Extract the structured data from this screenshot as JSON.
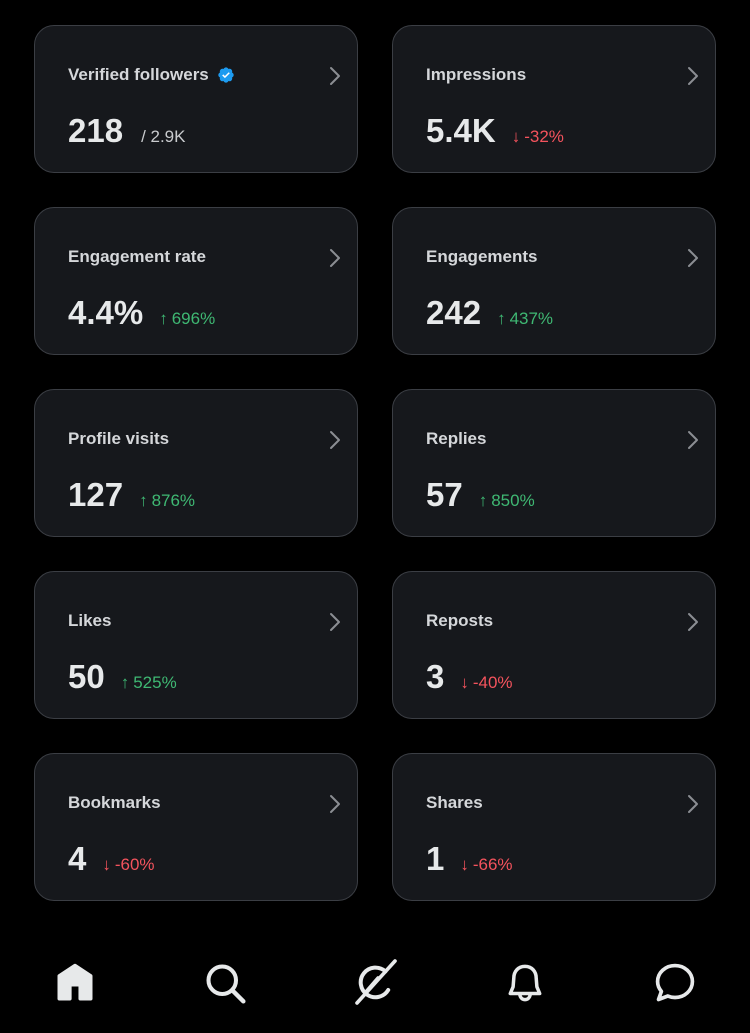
{
  "cards": [
    {
      "name": "verified-followers",
      "label": "Verified followers",
      "value": "218",
      "sub": "/ 2.9K",
      "verified": true,
      "color": "#1d9bf0"
    },
    {
      "name": "impressions",
      "label": "Impressions",
      "value": "5.4K",
      "change": "-32%",
      "direction": "down",
      "arrow": "↓"
    },
    {
      "name": "engagement-rate",
      "label": "Engagement rate",
      "value": "4.4%",
      "change": "696%",
      "direction": "up",
      "arrow": "↑"
    },
    {
      "name": "engagements",
      "label": "Engagements",
      "value": "242",
      "change": "437%",
      "direction": "up",
      "arrow": "↑"
    },
    {
      "name": "profile-visits",
      "label": "Profile visits",
      "value": "127",
      "change": "876%",
      "direction": "up",
      "arrow": "↑"
    },
    {
      "name": "replies",
      "label": "Replies",
      "value": "57",
      "change": "850%",
      "direction": "up",
      "arrow": "↑"
    },
    {
      "name": "likes",
      "label": "Likes",
      "value": "50",
      "change": "525%",
      "direction": "up",
      "arrow": "↑"
    },
    {
      "name": "reposts",
      "label": "Reposts",
      "value": "3",
      "change": "-40%",
      "direction": "down",
      "arrow": "↓"
    },
    {
      "name": "bookmarks",
      "label": "Bookmarks",
      "value": "4",
      "change": "-60%",
      "direction": "down",
      "arrow": "↓"
    },
    {
      "name": "shares",
      "label": "Shares",
      "value": "1",
      "change": "-66%",
      "direction": "down",
      "arrow": "↓"
    }
  ],
  "colors": {
    "up": "#3fb873",
    "down": "#f4535d",
    "verified": "#1d9bf0"
  },
  "nav": {
    "items": [
      {
        "name": "home",
        "icon": "home-icon",
        "active": true
      },
      {
        "name": "search",
        "icon": "search-icon"
      },
      {
        "name": "grok",
        "icon": "grok-icon"
      },
      {
        "name": "notifications",
        "icon": "bell-icon"
      },
      {
        "name": "messages",
        "icon": "message-icon"
      }
    ]
  }
}
